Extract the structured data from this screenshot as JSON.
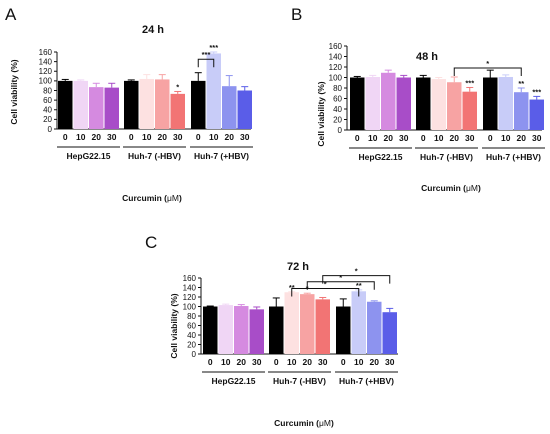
{
  "chart_data": [
    {
      "type": "bar",
      "panel": "A",
      "title": "24 h",
      "ylabel": "Cell viability (%)",
      "xlabel_prefix": "Curcumin (",
      "xlabel_unit": "μM",
      "xlabel_suffix": ")",
      "ylim": [
        0,
        160
      ],
      "yticks": [
        0,
        20,
        40,
        60,
        80,
        100,
        120,
        140,
        160
      ],
      "groups": [
        {
          "name": "HepG22.15",
          "doses": [
            "0",
            "10",
            "20",
            "30"
          ],
          "values": [
            100,
            100,
            87,
            86
          ],
          "errors": [
            3,
            2,
            8,
            9
          ],
          "sig": [
            "",
            "",
            "",
            ""
          ]
        },
        {
          "name": "Huh-7 (-HBV)",
          "doses": [
            "0",
            "10",
            "20",
            "30"
          ],
          "values": [
            100,
            104,
            103,
            73
          ],
          "errors": [
            2,
            9,
            10,
            5
          ],
          "sig": [
            "",
            "",
            "",
            "*"
          ]
        },
        {
          "name": "Huh-7 (+HBV)",
          "doses": [
            "0",
            "10",
            "20",
            "30"
          ],
          "values": [
            100,
            157,
            89,
            80
          ],
          "errors": [
            17,
            3,
            22,
            8
          ],
          "sig": [
            "",
            "***",
            "",
            ""
          ]
        }
      ],
      "brackets": [
        {
          "from": [
            2,
            0
          ],
          "to": [
            2,
            1
          ],
          "level": 145,
          "label": "***"
        }
      ]
    },
    {
      "type": "bar",
      "panel": "B",
      "title": "48 h",
      "ylabel": "Cell viability (%)",
      "xlabel_prefix": "Curcumin (",
      "xlabel_unit": "μM",
      "xlabel_suffix": ")",
      "ylim": [
        0,
        160
      ],
      "yticks": [
        0,
        20,
        40,
        60,
        80,
        100,
        120,
        140,
        160
      ],
      "groups": [
        {
          "name": "HepG22.15",
          "doses": [
            "0",
            "10",
            "20",
            "30"
          ],
          "values": [
            100,
            101,
            109,
            100
          ],
          "errors": [
            2,
            3,
            5,
            4
          ],
          "sig": [
            "",
            "",
            "",
            ""
          ]
        },
        {
          "name": "Huh-7 (-HBV)",
          "doses": [
            "0",
            "10",
            "20",
            "30"
          ],
          "values": [
            100,
            97,
            91,
            73
          ],
          "errors": [
            4,
            3,
            10,
            8
          ],
          "sig": [
            "",
            "",
            "",
            "***"
          ]
        },
        {
          "name": "Huh-7 (+HBV)",
          "doses": [
            "0",
            "10",
            "20",
            "30"
          ],
          "values": [
            100,
            101,
            72,
            58
          ],
          "errors": [
            14,
            4,
            8,
            6
          ],
          "sig": [
            "",
            "",
            "**",
            "***"
          ]
        }
      ],
      "brackets": [
        {
          "from": [
            1,
            2
          ],
          "to": [
            2,
            2
          ],
          "level": 118,
          "label": "*"
        }
      ]
    },
    {
      "type": "bar",
      "panel": "C",
      "title": "72 h",
      "ylabel": "Cell viability (%)",
      "xlabel_prefix": "Curcumin (",
      "xlabel_unit": "μM",
      "xlabel_suffix": ")",
      "ylim": [
        0,
        160
      ],
      "yticks": [
        0,
        20,
        40,
        60,
        80,
        100,
        120,
        140,
        160
      ],
      "groups": [
        {
          "name": "HepG22.15",
          "doses": [
            "0",
            "10",
            "20",
            "30"
          ],
          "values": [
            100,
            103,
            101,
            94
          ],
          "errors": [
            1,
            2,
            3,
            5
          ],
          "sig": [
            "",
            "",
            "",
            ""
          ]
        },
        {
          "name": "Huh-7 (-HBV)",
          "doses": [
            "0",
            "10",
            "20",
            "30"
          ],
          "values": [
            100,
            130,
            126,
            115
          ],
          "errors": [
            18,
            1,
            2,
            4
          ],
          "sig": [
            "",
            "**",
            "*",
            ""
          ]
        },
        {
          "name": "Huh-7 (+HBV)",
          "doses": [
            "0",
            "10",
            "20",
            "30"
          ],
          "values": [
            100,
            132,
            110,
            88
          ],
          "errors": [
            16,
            3,
            2,
            8
          ],
          "sig": [
            "",
            "**",
            "",
            ""
          ]
        }
      ],
      "brackets": [
        {
          "from": [
            1,
            2
          ],
          "to": [
            2,
            2
          ],
          "level": 152,
          "label": "*"
        },
        {
          "from": [
            1,
            1
          ],
          "to": [
            2,
            1
          ],
          "level": 138,
          "label": "*"
        },
        {
          "from": [
            1,
            3
          ],
          "to": [
            2,
            3
          ],
          "level": 165,
          "label": "*"
        }
      ]
    }
  ],
  "colors": {
    "groups": [
      [
        "#000000",
        "#f0d6f5",
        "#d58ae0",
        "#a84dc8"
      ],
      [
        "#000000",
        "#fde1e1",
        "#f7a3a3",
        "#f27474"
      ],
      [
        "#000000",
        "#c8ccf8",
        "#8d93ef",
        "#5a5de8"
      ]
    ]
  }
}
